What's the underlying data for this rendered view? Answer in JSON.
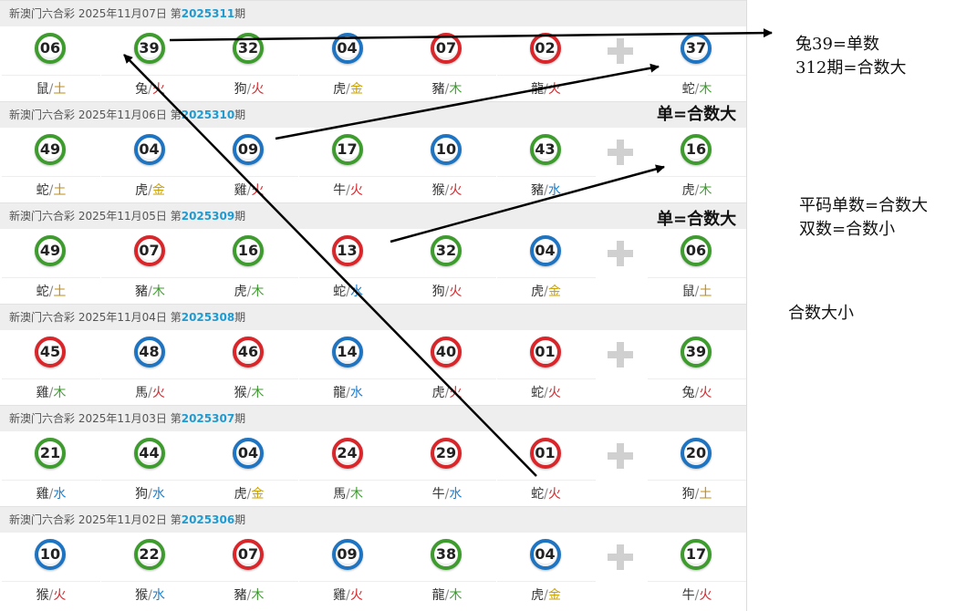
{
  "draws": [
    {
      "header_prefix": "新澳门六合彩 2025年11月07日 第",
      "period": "2025311",
      "suffix": "期",
      "balls": [
        {
          "num": "06",
          "color": "green",
          "zodiac": "鼠",
          "element": "土"
        },
        {
          "num": "39",
          "color": "green",
          "zodiac": "兔",
          "element": "火"
        },
        {
          "num": "32",
          "color": "green",
          "zodiac": "狗",
          "element": "火"
        },
        {
          "num": "04",
          "color": "blue",
          "zodiac": "虎",
          "element": "金"
        },
        {
          "num": "07",
          "color": "red",
          "zodiac": "豬",
          "element": "木"
        },
        {
          "num": "02",
          "color": "red",
          "zodiac": "龍",
          "element": "火"
        }
      ],
      "special": {
        "num": "37",
        "color": "blue",
        "zodiac": "蛇",
        "element": "木"
      }
    },
    {
      "header_prefix": "新澳门六合彩 2025年11月06日 第",
      "period": "2025310",
      "suffix": "期",
      "balls": [
        {
          "num": "49",
          "color": "green",
          "zodiac": "蛇",
          "element": "土"
        },
        {
          "num": "04",
          "color": "blue",
          "zodiac": "虎",
          "element": "金"
        },
        {
          "num": "09",
          "color": "blue",
          "zodiac": "雞",
          "element": "火"
        },
        {
          "num": "17",
          "color": "green",
          "zodiac": "牛",
          "element": "火"
        },
        {
          "num": "10",
          "color": "blue",
          "zodiac": "猴",
          "element": "火"
        },
        {
          "num": "43",
          "color": "green",
          "zodiac": "豬",
          "element": "水"
        }
      ],
      "special": {
        "num": "16",
        "color": "green",
        "zodiac": "虎",
        "element": "木"
      }
    },
    {
      "header_prefix": "新澳门六合彩 2025年11月05日 第",
      "period": "2025309",
      "suffix": "期",
      "balls": [
        {
          "num": "49",
          "color": "green",
          "zodiac": "蛇",
          "element": "土"
        },
        {
          "num": "07",
          "color": "red",
          "zodiac": "豬",
          "element": "木"
        },
        {
          "num": "16",
          "color": "green",
          "zodiac": "虎",
          "element": "木"
        },
        {
          "num": "13",
          "color": "red",
          "zodiac": "蛇",
          "element": "水"
        },
        {
          "num": "32",
          "color": "green",
          "zodiac": "狗",
          "element": "火"
        },
        {
          "num": "04",
          "color": "blue",
          "zodiac": "虎",
          "element": "金"
        }
      ],
      "special": {
        "num": "06",
        "color": "green",
        "zodiac": "鼠",
        "element": "土"
      }
    },
    {
      "header_prefix": "新澳门六合彩 2025年11月04日 第",
      "period": "2025308",
      "suffix": "期",
      "balls": [
        {
          "num": "45",
          "color": "red",
          "zodiac": "雞",
          "element": "木"
        },
        {
          "num": "48",
          "color": "blue",
          "zodiac": "馬",
          "element": "火"
        },
        {
          "num": "46",
          "color": "red",
          "zodiac": "猴",
          "element": "木"
        },
        {
          "num": "14",
          "color": "blue",
          "zodiac": "龍",
          "element": "水"
        },
        {
          "num": "40",
          "color": "red",
          "zodiac": "虎",
          "element": "火"
        },
        {
          "num": "01",
          "color": "red",
          "zodiac": "蛇",
          "element": "火"
        }
      ],
      "special": {
        "num": "39",
        "color": "green",
        "zodiac": "兔",
        "element": "火"
      }
    },
    {
      "header_prefix": "新澳门六合彩 2025年11月03日 第",
      "period": "2025307",
      "suffix": "期",
      "balls": [
        {
          "num": "21",
          "color": "green",
          "zodiac": "雞",
          "element": "水"
        },
        {
          "num": "44",
          "color": "green",
          "zodiac": "狗",
          "element": "水"
        },
        {
          "num": "04",
          "color": "blue",
          "zodiac": "虎",
          "element": "金"
        },
        {
          "num": "24",
          "color": "red",
          "zodiac": "馬",
          "element": "木"
        },
        {
          "num": "29",
          "color": "red",
          "zodiac": "牛",
          "element": "水"
        },
        {
          "num": "01",
          "color": "red",
          "zodiac": "蛇",
          "element": "火"
        }
      ],
      "special": {
        "num": "20",
        "color": "blue",
        "zodiac": "狗",
        "element": "土"
      }
    },
    {
      "header_prefix": "新澳门六合彩 2025年11月02日 第",
      "period": "2025306",
      "suffix": "期",
      "balls": [
        {
          "num": "10",
          "color": "blue",
          "zodiac": "猴",
          "element": "火"
        },
        {
          "num": "22",
          "color": "green",
          "zodiac": "猴",
          "element": "水"
        },
        {
          "num": "07",
          "color": "red",
          "zodiac": "豬",
          "element": "木"
        },
        {
          "num": "09",
          "color": "blue",
          "zodiac": "雞",
          "element": "火"
        },
        {
          "num": "38",
          "color": "green",
          "zodiac": "龍",
          "element": "木"
        },
        {
          "num": "04",
          "color": "blue",
          "zodiac": "虎",
          "element": "金"
        }
      ],
      "special": {
        "num": "17",
        "color": "green",
        "zodiac": "牛",
        "element": "火"
      }
    }
  ],
  "separator": "/",
  "annotations": {
    "note1": "兔39=单数",
    "note2": "312期=合数大",
    "note3": "单=合数大",
    "note4": "单=合数大",
    "note5": "平码单数=合数大",
    "note6": "双数=合数小",
    "note7": "合数大小"
  },
  "colors": {
    "red": "#d8262b",
    "blue": "#1f74c2",
    "green": "#3e9b2e",
    "header_bg": "#eeeeee",
    "period_accent": "#1f9bd1"
  }
}
